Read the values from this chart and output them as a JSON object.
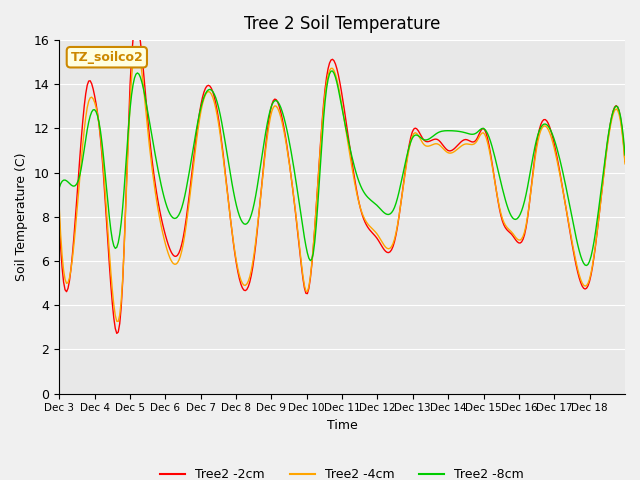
{
  "title": "Tree 2 Soil Temperature",
  "xlabel": "Time",
  "ylabel": "Soil Temperature (C)",
  "ylim": [
    0,
    16
  ],
  "yticks": [
    0,
    2,
    4,
    6,
    8,
    10,
    12,
    14,
    16
  ],
  "xtick_labels": [
    "Dec 3",
    "Dec 4",
    "Dec 5",
    "Dec 6",
    "Dec 7",
    "Dec 8",
    "Dec 9",
    "Dec 10",
    "Dec 11",
    "Dec 12",
    "Dec 13",
    "Dec 14",
    "Dec 15",
    "Dec 16",
    "Dec 17",
    "Dec 18"
  ],
  "legend_label": "TZ_soilco2",
  "line_labels": [
    "Tree2 -2cm",
    "Tree2 -4cm",
    "Tree2 -8cm"
  ],
  "line_colors": [
    "#ff0000",
    "#ffa500",
    "#00cc00"
  ],
  "bg_color": "#e8e8e8",
  "plot_bg_color": "#e8e8e8",
  "grid_color": "#ffffff",
  "n_days": 16,
  "n_points": 384
}
